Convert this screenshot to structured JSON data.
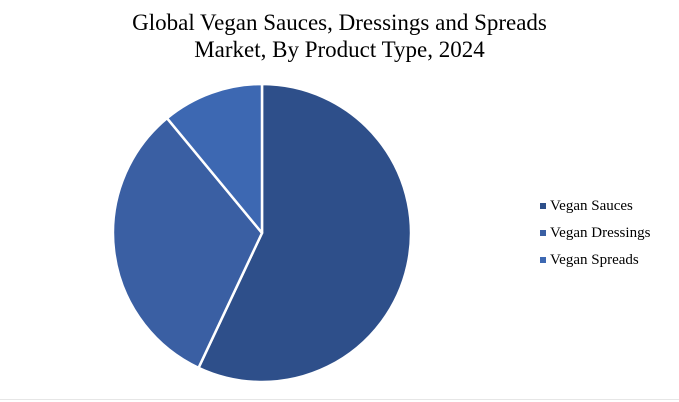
{
  "chart_data": {
    "type": "pie",
    "title_lines": [
      "Global Vegan Sauces, Dressings and Spreads",
      "Market, By Product Type, 2024"
    ],
    "categories": [
      "Vegan Sauces",
      "Vegan Dressings",
      "Vegan Spreads"
    ],
    "values": [
      57,
      32,
      11
    ],
    "colors": [
      "#2e4f8a",
      "#3a5fa3",
      "#3d68b2"
    ],
    "start_angle_deg": 0,
    "direction": "clockwise",
    "legend_position": "right"
  }
}
